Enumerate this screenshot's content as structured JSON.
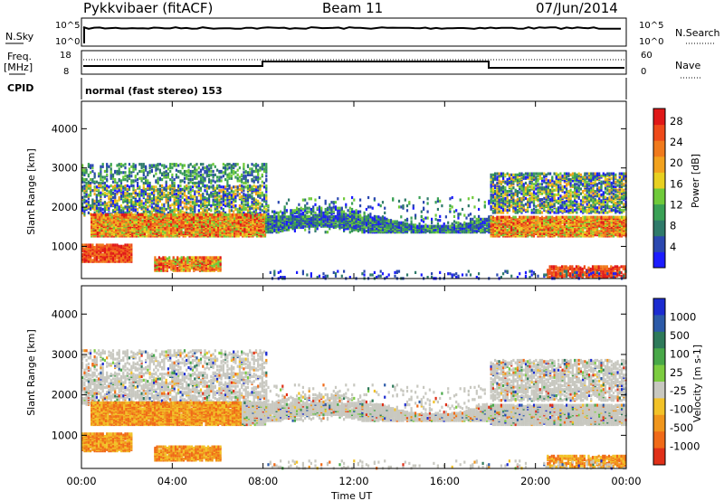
{
  "header": {
    "station": "Pykkvibaer (fitACF)",
    "beam": "Beam 11",
    "date": "07/Jun/2014"
  },
  "noise_panel": {
    "left_label": "N.Sky",
    "right_label": "N.Search",
    "ytick_top": "10^5",
    "ytick_bottom": "10^0"
  },
  "freq_panel": {
    "left_label_1": "Freq.",
    "left_label_2": "[MHz]",
    "right_label": "Nave",
    "left_tick_top": "18",
    "left_tick_bottom": "8",
    "right_tick_top": "60",
    "right_tick_bottom": "0"
  },
  "cpid": {
    "label": "CPID",
    "text": "normal (fast stereo) 153"
  },
  "chart_data": [
    {
      "type": "heatmap",
      "title": "",
      "ylabel": "Slant Range [km]",
      "xlabel": "",
      "ylim": [
        180,
        4700
      ],
      "yticks": [
        "1000",
        "2000",
        "3000",
        "4000"
      ],
      "ytick_values": [
        1000,
        2000,
        3000,
        4000
      ],
      "colorbar": {
        "label": "Power [dB]",
        "ticks": [
          "4",
          "8",
          "12",
          "16",
          "20",
          "24",
          "28"
        ],
        "colors": [
          "#1c1cff",
          "#2b48b0",
          "#2f7a6a",
          "#3aa155",
          "#6fca3a",
          "#e8d020",
          "#f2a21e",
          "#f07a1c",
          "#ee4a1a",
          "#e01818"
        ]
      }
    },
    {
      "type": "heatmap",
      "title": "",
      "ylabel": "Slant Range [km]",
      "xlabel": "Time UT",
      "ylim": [
        180,
        4700
      ],
      "yticks": [
        "1000",
        "2000",
        "3000",
        "4000"
      ],
      "ytick_values": [
        1000,
        2000,
        3000,
        4000
      ],
      "xticks": [
        "00:00",
        "04:00",
        "08:00",
        "12:00",
        "16:00",
        "20:00",
        "00:00"
      ],
      "colorbar": {
        "label": "Velocity [m s-1]",
        "ticks": [
          "1000",
          "500",
          "100",
          "25",
          "-25",
          "-100",
          "-500",
          "-1000"
        ],
        "colors": [
          "#1c2cd0",
          "#2c5aa8",
          "#2e7a5a",
          "#48a848",
          "#7ccc40",
          "#c8c8c0",
          "#f2c228",
          "#f0961c",
          "#f06a18",
          "#e03018"
        ]
      }
    }
  ]
}
